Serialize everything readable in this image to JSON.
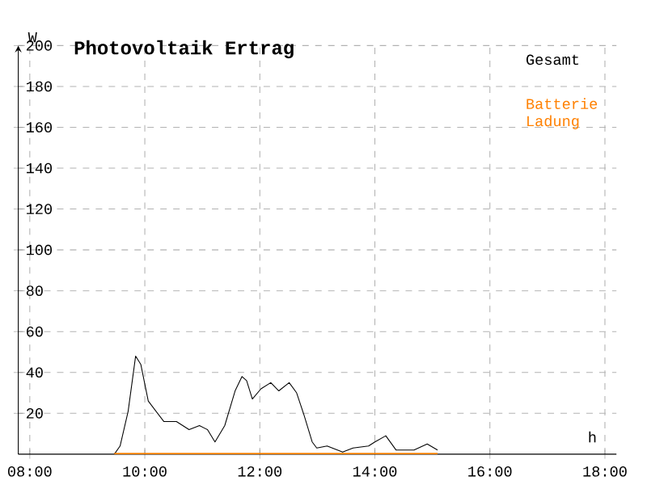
{
  "chart_data": {
    "type": "line",
    "title": "Photovoltaik Ertrag",
    "xlabel": "h",
    "ylabel": "W",
    "xlim": [
      7.8,
      18.2
    ],
    "ylim": [
      0,
      200
    ],
    "xticks": [
      {
        "value": 8,
        "label": "08:00"
      },
      {
        "value": 10,
        "label": "10:00"
      },
      {
        "value": 12,
        "label": "12:00"
      },
      {
        "value": 14,
        "label": "14:00"
      },
      {
        "value": 16,
        "label": "16:00"
      },
      {
        "value": 18,
        "label": "18:00"
      }
    ],
    "yticks": [
      20,
      40,
      60,
      80,
      100,
      120,
      140,
      160,
      180,
      200
    ],
    "grid": true,
    "legend": "top right",
    "marker": "none",
    "line_style": "solid",
    "series": [
      {
        "name": "Gesamt",
        "color": "#000000",
        "x": [
          9.47,
          9.57,
          9.71,
          9.84,
          9.93,
          10.06,
          10.33,
          10.55,
          10.77,
          10.95,
          11.09,
          11.22,
          11.39,
          11.57,
          11.69,
          11.77,
          11.87,
          12.02,
          12.19,
          12.33,
          12.51,
          12.64,
          12.77,
          12.91,
          12.99,
          13.17,
          13.44,
          13.62,
          13.89,
          14.0,
          14.19,
          14.37,
          14.68,
          14.91,
          15.09
        ],
        "values": [
          0,
          4,
          21,
          48,
          44,
          26,
          16,
          16,
          12,
          14,
          12,
          6,
          14,
          31,
          38,
          36,
          27,
          32,
          35,
          31,
          35,
          30,
          19,
          6,
          3,
          4,
          1,
          3,
          4,
          6,
          9,
          2,
          2,
          5,
          2
        ]
      },
      {
        "name": "Batterie Ladung",
        "color": "#ff8000",
        "x": [
          9.47,
          15.09
        ],
        "values": [
          0,
          0
        ]
      }
    ]
  }
}
